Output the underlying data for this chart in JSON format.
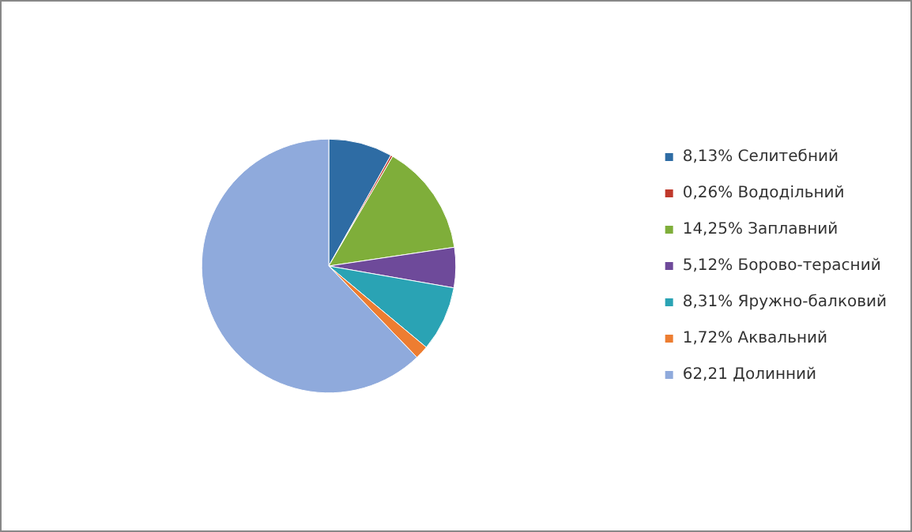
{
  "chart_data": {
    "type": "pie",
    "categories": [
      "8,13% Селитебний",
      "0,26% Вододільний",
      "14,25% Заплавний",
      "5,12% Борово-терасний",
      "8,31% Яружно-балковий",
      "1,72% Аквальний",
      "62,21 Долинний"
    ],
    "values": [
      8.13,
      0.26,
      14.25,
      5.12,
      8.31,
      1.72,
      62.21
    ],
    "colors": [
      "#2e6ca4",
      "#c0392b",
      "#7fae3a",
      "#6e4a9a",
      "#2aa3b4",
      "#ed7d31",
      "#8faadc"
    ],
    "legend": "right"
  }
}
